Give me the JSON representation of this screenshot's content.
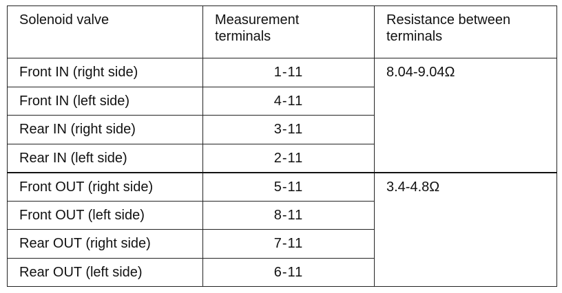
{
  "table": {
    "header": [
      "Solenoid valve",
      "Measurement terminals",
      "Resistance between terminals"
    ],
    "groups": [
      {
        "resistance": "8.04-9.04Ω",
        "rows": [
          [
            "Front IN (right side)",
            "1-11"
          ],
          [
            "Front IN (left side)",
            "4-11"
          ],
          [
            "Rear IN (right side)",
            "3-11"
          ],
          [
            "Rear IN (left side)",
            "2-11"
          ]
        ]
      },
      {
        "resistance": "3.4-4.8Ω",
        "rows": [
          [
            "Front OUT (right side)",
            "5-11"
          ],
          [
            "Front OUT (left side)",
            "8-11"
          ],
          [
            "Rear OUT (right side)",
            "7-11"
          ],
          [
            "Rear OUT (left side)",
            "6-11"
          ]
        ]
      }
    ]
  }
}
